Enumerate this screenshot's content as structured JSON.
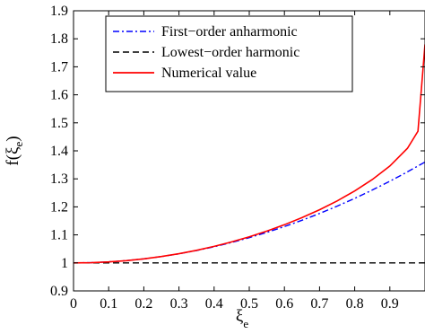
{
  "chart_data": {
    "type": "line",
    "title": "",
    "xlabel": "ξ",
    "xlabel_sub": "e",
    "ylabel": "f(ξ",
    "ylabel_sub": "e",
    "ylabel_close": ")",
    "xlim": [
      0,
      1
    ],
    "ylim": [
      0.9,
      1.9
    ],
    "xticks": [
      "0",
      "0.1",
      "0.2",
      "0.3",
      "0.4",
      "0.5",
      "0.6",
      "0.7",
      "0.8",
      "0.9"
    ],
    "yticks": [
      "0.9",
      "1",
      "1.1",
      "1.2",
      "1.3",
      "1.4",
      "1.5",
      "1.6",
      "1.7",
      "1.8",
      "1.9"
    ],
    "grid": false,
    "legend_position": "top-left",
    "series": [
      {
        "name": "First−order anharmonic",
        "color": "#0000ff",
        "style": "dashdot",
        "x": [
          0,
          0.05,
          0.1,
          0.15,
          0.2,
          0.25,
          0.3,
          0.35,
          0.4,
          0.45,
          0.5,
          0.55,
          0.6,
          0.65,
          0.7,
          0.75,
          0.8,
          0.85,
          0.9,
          0.95,
          1.0
        ],
        "y": [
          1.0,
          1.0009,
          1.0036,
          1.008,
          1.0144,
          1.0225,
          1.0324,
          1.0441,
          1.0576,
          1.0729,
          1.09,
          1.1089,
          1.1296,
          1.1521,
          1.1764,
          1.2025,
          1.2304,
          1.2601,
          1.2916,
          1.3249,
          1.36
        ]
      },
      {
        "name": "Lowest−order harmonic",
        "color": "#000000",
        "style": "dashed",
        "x": [
          0,
          1.0
        ],
        "y": [
          1.0,
          1.0
        ]
      },
      {
        "name": "Numerical value",
        "color": "#ff0000",
        "style": "solid",
        "x": [
          0,
          0.05,
          0.1,
          0.15,
          0.2,
          0.25,
          0.3,
          0.35,
          0.4,
          0.45,
          0.5,
          0.55,
          0.6,
          0.65,
          0.7,
          0.75,
          0.8,
          0.85,
          0.9,
          0.95,
          0.98,
          1.0
        ],
        "y": [
          1.0,
          1.0009,
          1.0036,
          1.0081,
          1.0145,
          1.0227,
          1.0329,
          1.0449,
          1.059,
          1.075,
          1.0932,
          1.1135,
          1.1362,
          1.1615,
          1.1897,
          1.2212,
          1.2568,
          1.2975,
          1.3458,
          1.4088,
          1.47,
          1.78
        ]
      }
    ]
  }
}
